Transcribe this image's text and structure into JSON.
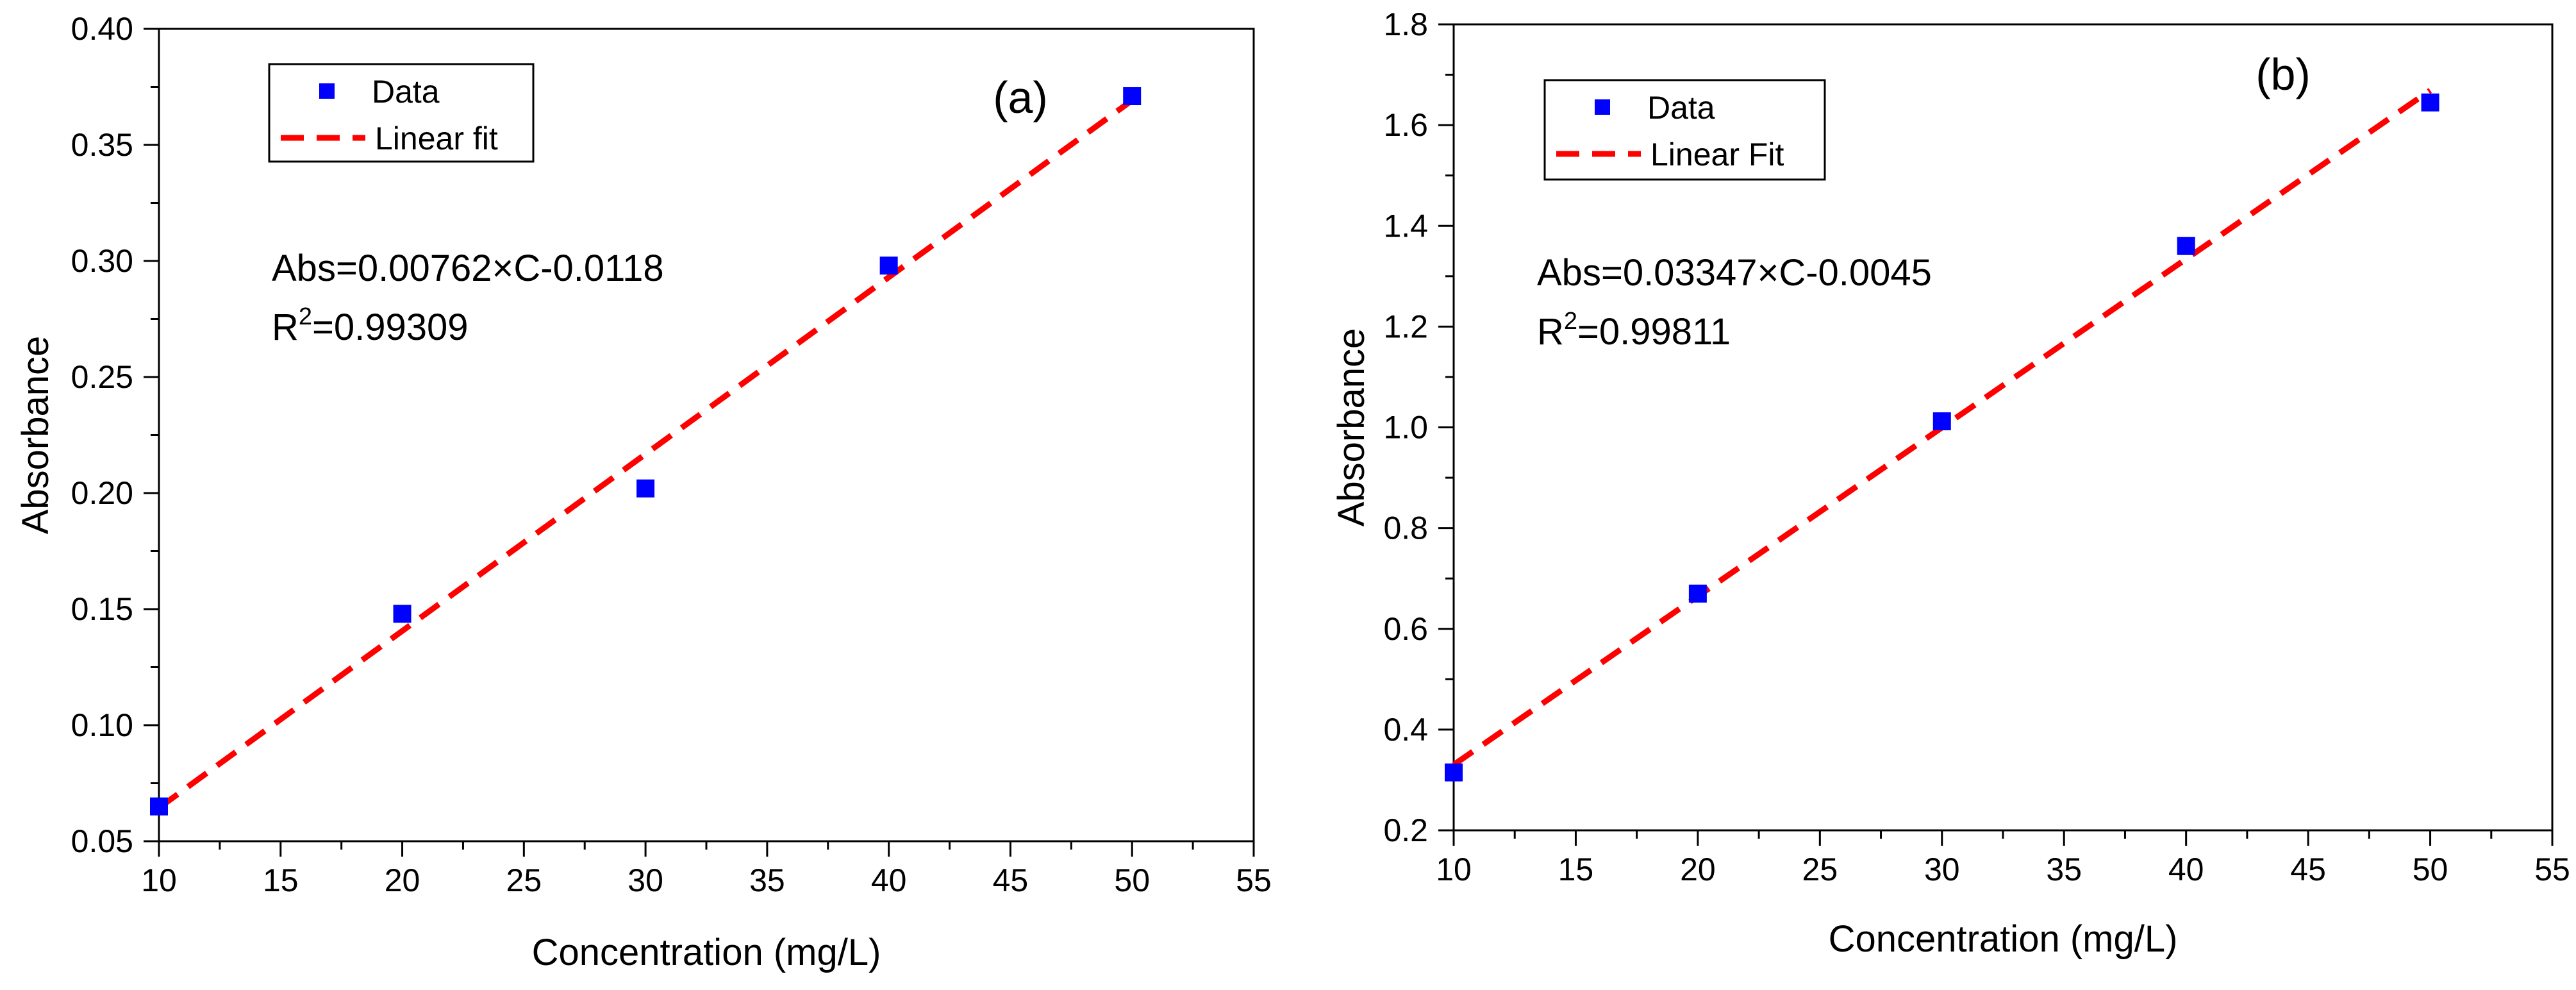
{
  "chart_data": [
    {
      "type": "scatter",
      "panel_label": "(a)",
      "xlabel": "Concentration (mg/L)",
      "ylabel": "Absorbance",
      "xlim": [
        10,
        55
      ],
      "ylim": [
        0.05,
        0.4
      ],
      "xticks": [
        10,
        15,
        20,
        25,
        30,
        35,
        40,
        45,
        50,
        55
      ],
      "xtick_labels": [
        "10",
        "15",
        "20",
        "25",
        "30",
        "35",
        "40",
        "45",
        "50",
        "55"
      ],
      "yticks": [
        0.05,
        0.1,
        0.15,
        0.2,
        0.25,
        0.3,
        0.35,
        0.4
      ],
      "ytick_labels": [
        "0.05",
        "0.10",
        "0.15",
        "0.20",
        "0.25",
        "0.30",
        "0.35",
        "0.40"
      ],
      "grid": false,
      "legend_position": "top-left",
      "legend": {
        "data_label": "Data",
        "fit_label": "Linear fit"
      },
      "equation": {
        "prefix": "Abs=0.00762×C-0.0118",
        "r_label": "R",
        "r_sup": "2",
        "r_value": "=0.99309"
      },
      "series": [
        {
          "name": "Data",
          "kind": "marker",
          "color": "#0000ff",
          "x": [
            10,
            20,
            30,
            40,
            50
          ],
          "y": [
            0.065,
            0.148,
            0.202,
            0.298,
            0.371
          ]
        },
        {
          "name": "Linear fit",
          "kind": "dashed-line",
          "color": "#ff0000",
          "x": [
            10,
            50
          ],
          "y": [
            0.0644,
            0.3692
          ]
        }
      ]
    },
    {
      "type": "scatter",
      "panel_label": "(b)",
      "xlabel": "Concentration (mg/L)",
      "ylabel": "Absorbance",
      "xlim": [
        10,
        55
      ],
      "ylim": [
        0.2,
        1.8
      ],
      "xticks": [
        10,
        15,
        20,
        25,
        30,
        35,
        40,
        45,
        50,
        55
      ],
      "xtick_labels": [
        "10",
        "15",
        "20",
        "25",
        "30",
        "35",
        "40",
        "45",
        "50",
        "55"
      ],
      "yticks": [
        0.2,
        0.4,
        0.6,
        0.8,
        1.0,
        1.2,
        1.4,
        1.6,
        1.8
      ],
      "ytick_labels": [
        "0.2",
        "0.4",
        "0.6",
        "0.8",
        "1.0",
        "1.2",
        "1.4",
        "1.6",
        "1.8"
      ],
      "grid": false,
      "legend_position": "top-left",
      "legend": {
        "data_label": "Data",
        "fit_label": "Linear Fit"
      },
      "equation": {
        "prefix": "Abs=0.03347×C-0.0045",
        "r_label": "R",
        "r_sup": "2",
        "r_value": "=0.99811"
      },
      "series": [
        {
          "name": "Data",
          "kind": "marker",
          "color": "#0000ff",
          "x": [
            10,
            20,
            30,
            40,
            50
          ],
          "y": [
            0.315,
            0.67,
            1.012,
            1.36,
            1.645
          ]
        },
        {
          "name": "Linear Fit",
          "kind": "dashed-line",
          "color": "#ff0000",
          "x": [
            10,
            50
          ],
          "y": [
            0.3302,
            1.669
          ]
        }
      ]
    }
  ]
}
